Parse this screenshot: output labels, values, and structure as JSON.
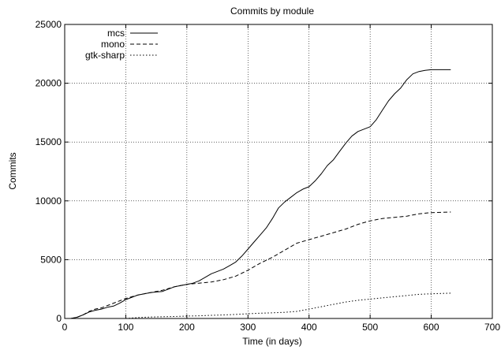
{
  "chart_data": {
    "type": "line",
    "title": "Commits by module",
    "xlabel": "Time (in days)",
    "ylabel": "Commits",
    "xlim": [
      0,
      700
    ],
    "ylim": [
      0,
      25000
    ],
    "xticks": [
      0,
      100,
      200,
      300,
      400,
      500,
      600,
      700
    ],
    "yticks": [
      0,
      5000,
      10000,
      15000,
      20000,
      25000
    ],
    "grid": true,
    "legend_position": "top-left",
    "series": [
      {
        "name": "mcs",
        "style": "solid",
        "x": [
          10,
          20,
          30,
          40,
          50,
          60,
          70,
          80,
          90,
          100,
          110,
          120,
          130,
          140,
          150,
          160,
          170,
          180,
          190,
          200,
          210,
          220,
          230,
          240,
          250,
          260,
          270,
          280,
          290,
          300,
          310,
          320,
          330,
          340,
          350,
          360,
          370,
          380,
          390,
          400,
          410,
          420,
          430,
          440,
          450,
          460,
          470,
          480,
          490,
          500,
          510,
          520,
          530,
          540,
          550,
          560,
          570,
          580,
          590,
          600,
          610,
          620,
          632
        ],
        "y": [
          0,
          100,
          300,
          550,
          700,
          800,
          950,
          1050,
          1300,
          1600,
          1800,
          2000,
          2100,
          2200,
          2250,
          2300,
          2500,
          2700,
          2800,
          2900,
          3000,
          3200,
          3500,
          3800,
          4000,
          4200,
          4500,
          4800,
          5300,
          5900,
          6500,
          7100,
          7700,
          8500,
          9400,
          9900,
          10300,
          10700,
          11000,
          11200,
          11700,
          12300,
          13000,
          13500,
          14200,
          14900,
          15500,
          15900,
          16100,
          16300,
          16900,
          17700,
          18500,
          19100,
          19600,
          20300,
          20800,
          21000,
          21100,
          21150,
          21150,
          21150,
          21150
        ]
      },
      {
        "name": "mono",
        "style": "dashed",
        "x": [
          10,
          20,
          30,
          40,
          50,
          60,
          70,
          80,
          90,
          100,
          120,
          140,
          160,
          180,
          200,
          220,
          240,
          260,
          280,
          300,
          320,
          340,
          360,
          380,
          400,
          420,
          440,
          460,
          480,
          500,
          520,
          540,
          560,
          580,
          600,
          632
        ],
        "y": [
          0,
          100,
          300,
          600,
          800,
          900,
          1100,
          1300,
          1500,
          1700,
          2000,
          2200,
          2400,
          2700,
          2900,
          3000,
          3100,
          3300,
          3600,
          4100,
          4700,
          5200,
          5800,
          6400,
          6700,
          7000,
          7300,
          7600,
          8000,
          8300,
          8500,
          8600,
          8700,
          8900,
          9000,
          9050
        ]
      },
      {
        "name": "gtk-sharp",
        "style": "dotted",
        "x": [
          100,
          120,
          140,
          160,
          180,
          200,
          220,
          240,
          260,
          280,
          300,
          320,
          340,
          360,
          380,
          400,
          420,
          440,
          460,
          480,
          500,
          520,
          540,
          560,
          580,
          600,
          632
        ],
        "y": [
          0,
          80,
          120,
          150,
          170,
          200,
          230,
          270,
          300,
          340,
          400,
          450,
          480,
          520,
          600,
          800,
          1000,
          1200,
          1400,
          1550,
          1650,
          1750,
          1850,
          1950,
          2050,
          2100,
          2150
        ]
      }
    ]
  }
}
